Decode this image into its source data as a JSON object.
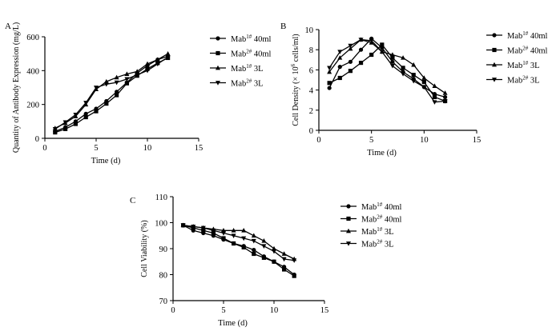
{
  "colors": {
    "ink": "#000000",
    "background": "#ffffff"
  },
  "chart_data": [
    {
      "panel": "A",
      "type": "line",
      "title": "",
      "xlabel": "Time (d)",
      "ylabel": "Quantity of Antibody Expression (mg/L)",
      "xlim": [
        0,
        15
      ],
      "ylim": [
        0,
        600
      ],
      "xticks": [
        0,
        5,
        10,
        15
      ],
      "yticks": [
        0,
        200,
        400,
        600
      ],
      "grid": false,
      "legend_position": "right",
      "series": [
        {
          "name": "Mab1# 40ml",
          "base": "Mab",
          "sup": "1#",
          "rest": " 40ml",
          "marker": "circle",
          "x": [
            1,
            2,
            3,
            4,
            5,
            6,
            7,
            8,
            9,
            10,
            11,
            12
          ],
          "y": [
            40,
            65,
            100,
            145,
            175,
            220,
            275,
            330,
            385,
            430,
            465,
            485
          ]
        },
        {
          "name": "Mab2# 40ml",
          "base": "Mab",
          "sup": "2#",
          "rest": " 40ml",
          "marker": "square",
          "x": [
            1,
            2,
            3,
            4,
            5,
            6,
            7,
            8,
            9,
            10,
            11,
            12
          ],
          "y": [
            35,
            55,
            85,
            125,
            160,
            205,
            255,
            325,
            370,
            410,
            445,
            475
          ]
        },
        {
          "name": "Mab1# 3L",
          "base": "Mab",
          "sup": "1#",
          "rest": " 3L",
          "marker": "triangle",
          "x": [
            1,
            2,
            3,
            4,
            5,
            6,
            7,
            8,
            9,
            10,
            11,
            12
          ],
          "y": [
            60,
            90,
            130,
            200,
            290,
            335,
            360,
            380,
            395,
            440,
            465,
            500
          ]
        },
        {
          "name": "Mab2# 3L",
          "base": "Mab",
          "sup": "2#",
          "rest": " 3L",
          "marker": "triangle-down",
          "x": [
            1,
            2,
            3,
            4,
            5,
            6,
            7,
            8,
            9,
            10,
            11,
            12
          ],
          "y": [
            55,
            95,
            140,
            210,
            300,
            320,
            330,
            350,
            375,
            400,
            440,
            480
          ]
        }
      ]
    },
    {
      "panel": "B",
      "type": "line",
      "title": "",
      "xlabel": "Time (d)",
      "ylabel": "Cell Density (×10^6 cells/ml)",
      "ylabel_parts": {
        "pre": "Cell Density (× 10",
        "sup": "6",
        "post": " cells/ml)"
      },
      "xlim": [
        0,
        15
      ],
      "ylim": [
        0,
        10
      ],
      "xticks": [
        0,
        5,
        10,
        15
      ],
      "yticks": [
        0,
        2,
        4,
        6,
        8,
        10
      ],
      "grid": false,
      "legend_position": "right",
      "series": [
        {
          "name": "Mab1# 40ml",
          "base": "Mab",
          "sup": "1#",
          "rest": " 40ml",
          "marker": "circle",
          "x": [
            1,
            2,
            3,
            4,
            5,
            6,
            7,
            8,
            9,
            10,
            11,
            12
          ],
          "y": [
            4.2,
            6.3,
            6.8,
            8.0,
            9.1,
            8.2,
            6.8,
            5.8,
            5.1,
            4.3,
            3.6,
            3.3
          ]
        },
        {
          "name": "Mab2# 40ml",
          "base": "Mab",
          "sup": "2#",
          "rest": " 40ml",
          "marker": "square",
          "x": [
            1,
            2,
            3,
            4,
            5,
            6,
            7,
            8,
            9,
            10,
            11,
            12
          ],
          "y": [
            4.7,
            5.2,
            5.9,
            6.7,
            7.5,
            8.5,
            7.2,
            6.2,
            5.5,
            4.8,
            3.3,
            2.9
          ]
        },
        {
          "name": "Mab1# 3L",
          "base": "Mab",
          "sup": "1#",
          "rest": " 3L",
          "marker": "triangle",
          "x": [
            1,
            2,
            3,
            4,
            5,
            6,
            7,
            8,
            9,
            10,
            11,
            12
          ],
          "y": [
            5.8,
            7.2,
            8.1,
            9.0,
            8.7,
            7.8,
            7.5,
            7.2,
            6.5,
            5.2,
            4.4,
            3.7
          ]
        },
        {
          "name": "Mab2# 3L",
          "base": "Mab",
          "sup": "2#",
          "rest": " 3L",
          "marker": "triangle-down",
          "x": [
            1,
            2,
            3,
            4,
            5,
            6,
            7,
            8,
            9,
            10,
            11,
            12
          ],
          "y": [
            6.2,
            7.8,
            8.4,
            9.0,
            8.9,
            7.8,
            6.4,
            5.6,
            4.9,
            4.3,
            2.8,
            2.9
          ]
        }
      ]
    },
    {
      "panel": "C",
      "type": "line",
      "title": "",
      "xlabel": "Time (d)",
      "ylabel": "Cell Viability (%)",
      "xlim": [
        0,
        15
      ],
      "ylim": [
        70,
        110
      ],
      "xticks": [
        0,
        5,
        10,
        15
      ],
      "yticks": [
        70,
        80,
        90,
        100,
        110
      ],
      "grid": false,
      "legend_position": "right",
      "series": [
        {
          "name": "Mab1# 40ml",
          "base": "Mab",
          "sup": "1#",
          "rest": " 40ml",
          "marker": "circle",
          "x": [
            1,
            2,
            3,
            4,
            5,
            6,
            7,
            8,
            9,
            10,
            11,
            12
          ],
          "y": [
            99,
            97,
            96,
            95,
            93.5,
            92,
            91,
            89.5,
            87,
            85,
            83,
            80
          ]
        },
        {
          "name": "Mab2# 40ml",
          "base": "Mab",
          "sup": "2#",
          "rest": " 40ml",
          "marker": "square",
          "x": [
            1,
            2,
            3,
            4,
            5,
            6,
            7,
            8,
            9,
            10,
            11,
            12
          ],
          "y": [
            99,
            98,
            97,
            96,
            94,
            92,
            90.5,
            88,
            86.5,
            85,
            82,
            79.5
          ]
        },
        {
          "name": "Mab1# 3L",
          "base": "Mab",
          "sup": "1#",
          "rest": " 3L",
          "marker": "triangle",
          "x": [
            1,
            2,
            3,
            4,
            5,
            6,
            7,
            8,
            9,
            10,
            11,
            12
          ],
          "y": [
            99,
            98.5,
            98,
            97.5,
            97,
            97,
            97,
            95,
            93,
            90,
            88,
            86
          ]
        },
        {
          "name": "Mab2# 3L",
          "base": "Mab",
          "sup": "2#",
          "rest": " 3L",
          "marker": "triangle-down",
          "x": [
            1,
            2,
            3,
            4,
            5,
            6,
            7,
            8,
            9,
            10,
            11,
            12
          ],
          "y": [
            99,
            98.5,
            98,
            97,
            96,
            95,
            94,
            93,
            91,
            89,
            86,
            85.5
          ]
        }
      ]
    }
  ]
}
